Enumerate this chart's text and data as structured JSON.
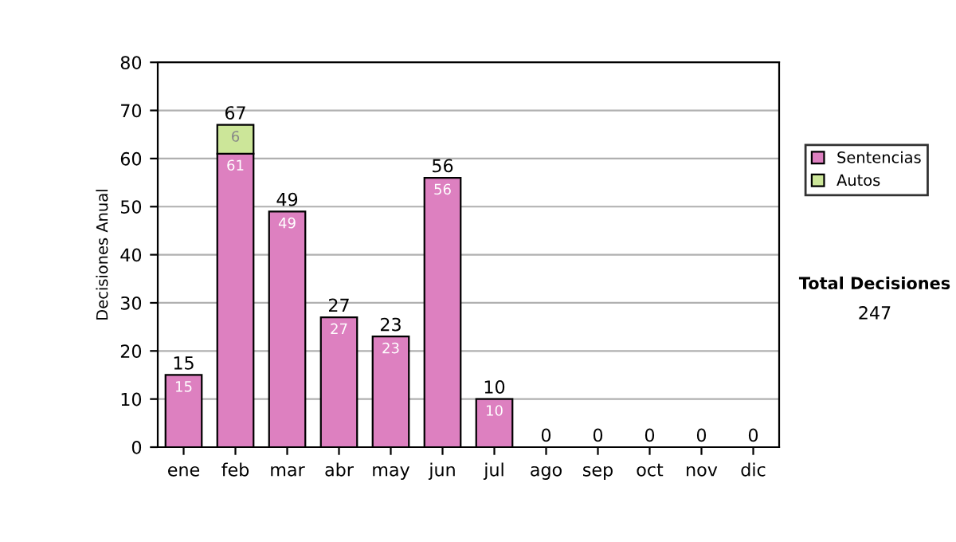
{
  "chart_data": {
    "type": "bar",
    "stacked": true,
    "ylabel": "Decisiones Anual",
    "categories": [
      "ene",
      "feb",
      "mar",
      "abr",
      "may",
      "jun",
      "jul",
      "ago",
      "sep",
      "oct",
      "nov",
      "dic"
    ],
    "series": [
      {
        "name": "Sentencias",
        "color": "#dd80c0",
        "values": [
          15,
          61,
          49,
          27,
          23,
          56,
          10,
          0,
          0,
          0,
          0,
          0
        ],
        "value_labels": [
          "15",
          "61",
          "49",
          "27",
          "23",
          "56",
          "10",
          null,
          null,
          null,
          null,
          null
        ]
      },
      {
        "name": "Autos",
        "color": "#cce699",
        "values": [
          0,
          6,
          0,
          0,
          0,
          0,
          0,
          0,
          0,
          0,
          0,
          0
        ],
        "value_labels": [
          null,
          "6",
          null,
          null,
          null,
          null,
          null,
          null,
          null,
          null,
          null,
          null
        ]
      }
    ],
    "totals": [
      "15",
      "67",
      "49",
      "27",
      "23",
      "56",
      "10",
      "0",
      "0",
      "0",
      "0",
      "0"
    ],
    "ylim": [
      0,
      80
    ],
    "yticks": [
      0,
      10,
      20,
      30,
      40,
      50,
      60,
      70,
      80
    ],
    "grid": "y",
    "legend": "right",
    "annotations": [
      "Total Decisiones",
      "247"
    ]
  }
}
